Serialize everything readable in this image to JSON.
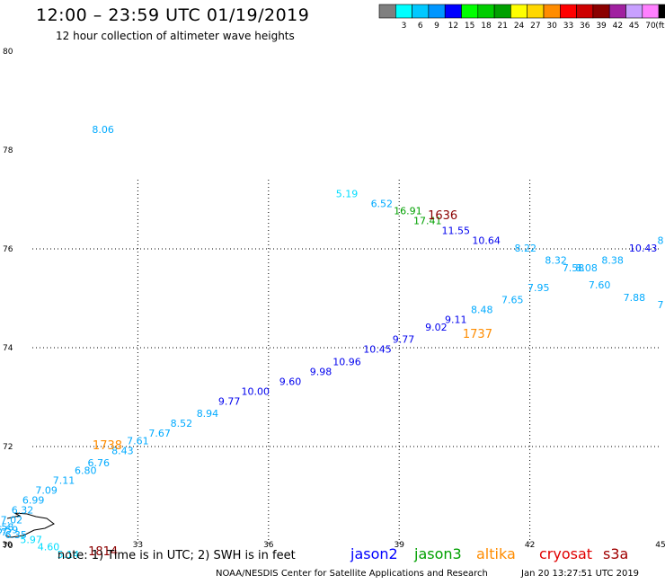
{
  "title": "12:00 – 23:59 UTC 01/19/2019",
  "subtitle": "12 hour collection of altimeter wave heights",
  "note": "note: 1) Time is in UTC; 2) SWH is in feet",
  "credit": "NOAA/NESDIS Center for Satellite Applications and Research",
  "timestamp": "Jan 20 13:27:51 UTC 2019",
  "satellites": [
    {
      "name": "jason2",
      "color": "#0000ff"
    },
    {
      "name": "jason3",
      "color": "#00a000"
    },
    {
      "name": "altika",
      "color": "#ff8c00"
    },
    {
      "name": "cryosat",
      "color": "#e00000"
    },
    {
      "name": "s3a",
      "color": "#a00000"
    }
  ],
  "legend": {
    "unit": "(ft)",
    "bins": [
      {
        "label": "",
        "color": "#7f7f7f"
      },
      {
        "label": "3",
        "color": "#00ffff"
      },
      {
        "label": "6",
        "color": "#00c8ff"
      },
      {
        "label": "9",
        "color": "#0096ff"
      },
      {
        "label": "12",
        "color": "#0000ff"
      },
      {
        "label": "15",
        "color": "#00ff00"
      },
      {
        "label": "18",
        "color": "#00cd00"
      },
      {
        "label": "21",
        "color": "#00a000"
      },
      {
        "label": "24",
        "color": "#ffff00"
      },
      {
        "label": "27",
        "color": "#ffd700"
      },
      {
        "label": "30",
        "color": "#ff8c00"
      },
      {
        "label": "33",
        "color": "#ff0000"
      },
      {
        "label": "36",
        "color": "#cd0000"
      },
      {
        "label": "39",
        "color": "#8b0000"
      },
      {
        "label": "42",
        "color": "#a020a0"
      },
      {
        "label": "45",
        "color": "#c8a0ff"
      },
      {
        "label": "70",
        "color": "#ff80ff"
      },
      {
        "label": "",
        "color": "#000000"
      }
    ]
  },
  "map": {
    "lon_range": [
      30,
      45
    ],
    "lat_range": [
      70,
      80
    ],
    "lon_ticks": [
      "30",
      "33",
      "36",
      "39",
      "42",
      "45"
    ],
    "lat_ticks": [
      "70",
      "72",
      "74",
      "76",
      "78",
      "80"
    ],
    "grid_lon": [
      33,
      36,
      39,
      42
    ],
    "grid_lat": [
      72,
      74,
      76
    ],
    "grid": "dotted"
  },
  "chart_data": {
    "type": "scatter",
    "title": "12:00 – 23:59 UTC 01/19/2019",
    "subtitle": "12 hour collection of altimeter wave heights",
    "xlabel": "",
    "ylabel": "",
    "xlim": [
      30,
      45
    ],
    "ylim": [
      70,
      80
    ],
    "grid": true,
    "unit": "ft",
    "wave_heights": [
      {
        "lon": 32.2,
        "lat": 78.35,
        "value": "8.06",
        "color": "#00aaff"
      },
      {
        "lon": 37.8,
        "lat": 77.05,
        "value": "5.19",
        "color": "#00ddff"
      },
      {
        "lon": 38.6,
        "lat": 76.85,
        "value": "6.52",
        "color": "#00aaff"
      },
      {
        "lon": 39.2,
        "lat": 76.7,
        "value": "16.91",
        "color": "#00a000"
      },
      {
        "lon": 39.65,
        "lat": 76.5,
        "value": "17.41",
        "color": "#00a000"
      },
      {
        "lon": 40.3,
        "lat": 76.3,
        "value": "11.55",
        "color": "#0000ee"
      },
      {
        "lon": 41.0,
        "lat": 76.1,
        "value": "10.64",
        "color": "#0000ee"
      },
      {
        "lon": 41.9,
        "lat": 75.95,
        "value": "8.22",
        "color": "#00aaff"
      },
      {
        "lon": 42.6,
        "lat": 75.7,
        "value": "8.32",
        "color": "#00aaff"
      },
      {
        "lon": 43.0,
        "lat": 75.55,
        "value": "7.58",
        "color": "#00aaff"
      },
      {
        "lon": 43.3,
        "lat": 75.55,
        "value": "8.08",
        "color": "#00aaff"
      },
      {
        "lon": 43.9,
        "lat": 75.7,
        "value": "8.38",
        "color": "#00aaff"
      },
      {
        "lon": 44.6,
        "lat": 75.95,
        "value": "10.43",
        "color": "#0000ee"
      },
      {
        "lon": 45.0,
        "lat": 76.1,
        "value": "8",
        "color": "#00aaff"
      },
      {
        "lon": 42.2,
        "lat": 75.15,
        "value": "7.95",
        "color": "#00aaff"
      },
      {
        "lon": 43.6,
        "lat": 75.2,
        "value": "7.60",
        "color": "#00aaff"
      },
      {
        "lon": 44.4,
        "lat": 74.95,
        "value": "7.88",
        "color": "#00aaff"
      },
      {
        "lon": 45.0,
        "lat": 74.8,
        "value": "7",
        "color": "#00aaff"
      },
      {
        "lon": 41.6,
        "lat": 74.9,
        "value": "7.65",
        "color": "#00aaff"
      },
      {
        "lon": 40.9,
        "lat": 74.7,
        "value": "8.48",
        "color": "#00aaff"
      },
      {
        "lon": 40.3,
        "lat": 74.5,
        "value": "9.11",
        "color": "#0000ee"
      },
      {
        "lon": 39.85,
        "lat": 74.35,
        "value": "9.02",
        "color": "#0000ee"
      },
      {
        "lon": 39.1,
        "lat": 74.1,
        "value": "9.77",
        "color": "#0000ee"
      },
      {
        "lon": 38.5,
        "lat": 73.9,
        "value": "10.45",
        "color": "#0000ee"
      },
      {
        "lon": 37.8,
        "lat": 73.65,
        "value": "10.96",
        "color": "#0000ee"
      },
      {
        "lon": 37.2,
        "lat": 73.45,
        "value": "9.98",
        "color": "#0000ee"
      },
      {
        "lon": 36.5,
        "lat": 73.25,
        "value": "9.60",
        "color": "#0000ee"
      },
      {
        "lon": 35.7,
        "lat": 73.05,
        "value": "10.00",
        "color": "#0000ee"
      },
      {
        "lon": 35.1,
        "lat": 72.85,
        "value": "9.77",
        "color": "#0000ee"
      },
      {
        "lon": 34.6,
        "lat": 72.6,
        "value": "8.94",
        "color": "#00aaff"
      },
      {
        "lon": 34.0,
        "lat": 72.4,
        "value": "8.52",
        "color": "#00aaff"
      },
      {
        "lon": 33.5,
        "lat": 72.2,
        "value": "7.67",
        "color": "#00aaff"
      },
      {
        "lon": 33.0,
        "lat": 72.05,
        "value": "7.61",
        "color": "#00aaff"
      },
      {
        "lon": 32.65,
        "lat": 71.85,
        "value": "8.43",
        "color": "#00aaff"
      },
      {
        "lon": 32.1,
        "lat": 71.6,
        "value": "6.76",
        "color": "#00aaff"
      },
      {
        "lon": 31.8,
        "lat": 71.45,
        "value": "6.80",
        "color": "#00aaff"
      },
      {
        "lon": 31.3,
        "lat": 71.25,
        "value": "7.11",
        "color": "#00aaff"
      },
      {
        "lon": 30.9,
        "lat": 71.05,
        "value": "7.09",
        "color": "#00aaff"
      },
      {
        "lon": 30.6,
        "lat": 70.85,
        "value": "6.99",
        "color": "#00aaff"
      },
      {
        "lon": 30.35,
        "lat": 70.65,
        "value": "6.32",
        "color": "#00aaff"
      },
      {
        "lon": 30.1,
        "lat": 70.45,
        "value": "7.02",
        "color": "#00aaff"
      },
      {
        "lon": 29.9,
        "lat": 70.3,
        "value": "6.58",
        "color": "#00aaff"
      },
      {
        "lon": 30.0,
        "lat": 70.25,
        "value": "6.59",
        "color": "#00aaff"
      },
      {
        "lon": 29.75,
        "lat": 70.2,
        "value": "5.87",
        "color": "#00aaff"
      },
      {
        "lon": 30.2,
        "lat": 70.15,
        "value": "6.35",
        "color": "#00aaff"
      },
      {
        "lon": 30.55,
        "lat": 70.05,
        "value": "5.97",
        "color": "#00ddff"
      },
      {
        "lon": 30.95,
        "lat": 69.9,
        "value": "4.60",
        "color": "#00ddff"
      },
      {
        "lon": 31.4,
        "lat": 69.75,
        "value": "5.14",
        "color": "#00ddff"
      }
    ],
    "pass_times": [
      {
        "lon": 40.0,
        "lat": 76.6,
        "label": "1636",
        "satellite": "s3a",
        "color": "#8b0000"
      },
      {
        "lon": 40.8,
        "lat": 74.2,
        "label": "1737",
        "satellite": "altika",
        "color": "#ff8c00"
      },
      {
        "lon": 32.3,
        "lat": 71.95,
        "label": "1738",
        "satellite": "altika",
        "color": "#ff8c00"
      },
      {
        "lon": 32.2,
        "lat": 69.8,
        "label": "1814",
        "satellite": "s3a",
        "color": "#8b0000"
      }
    ]
  }
}
